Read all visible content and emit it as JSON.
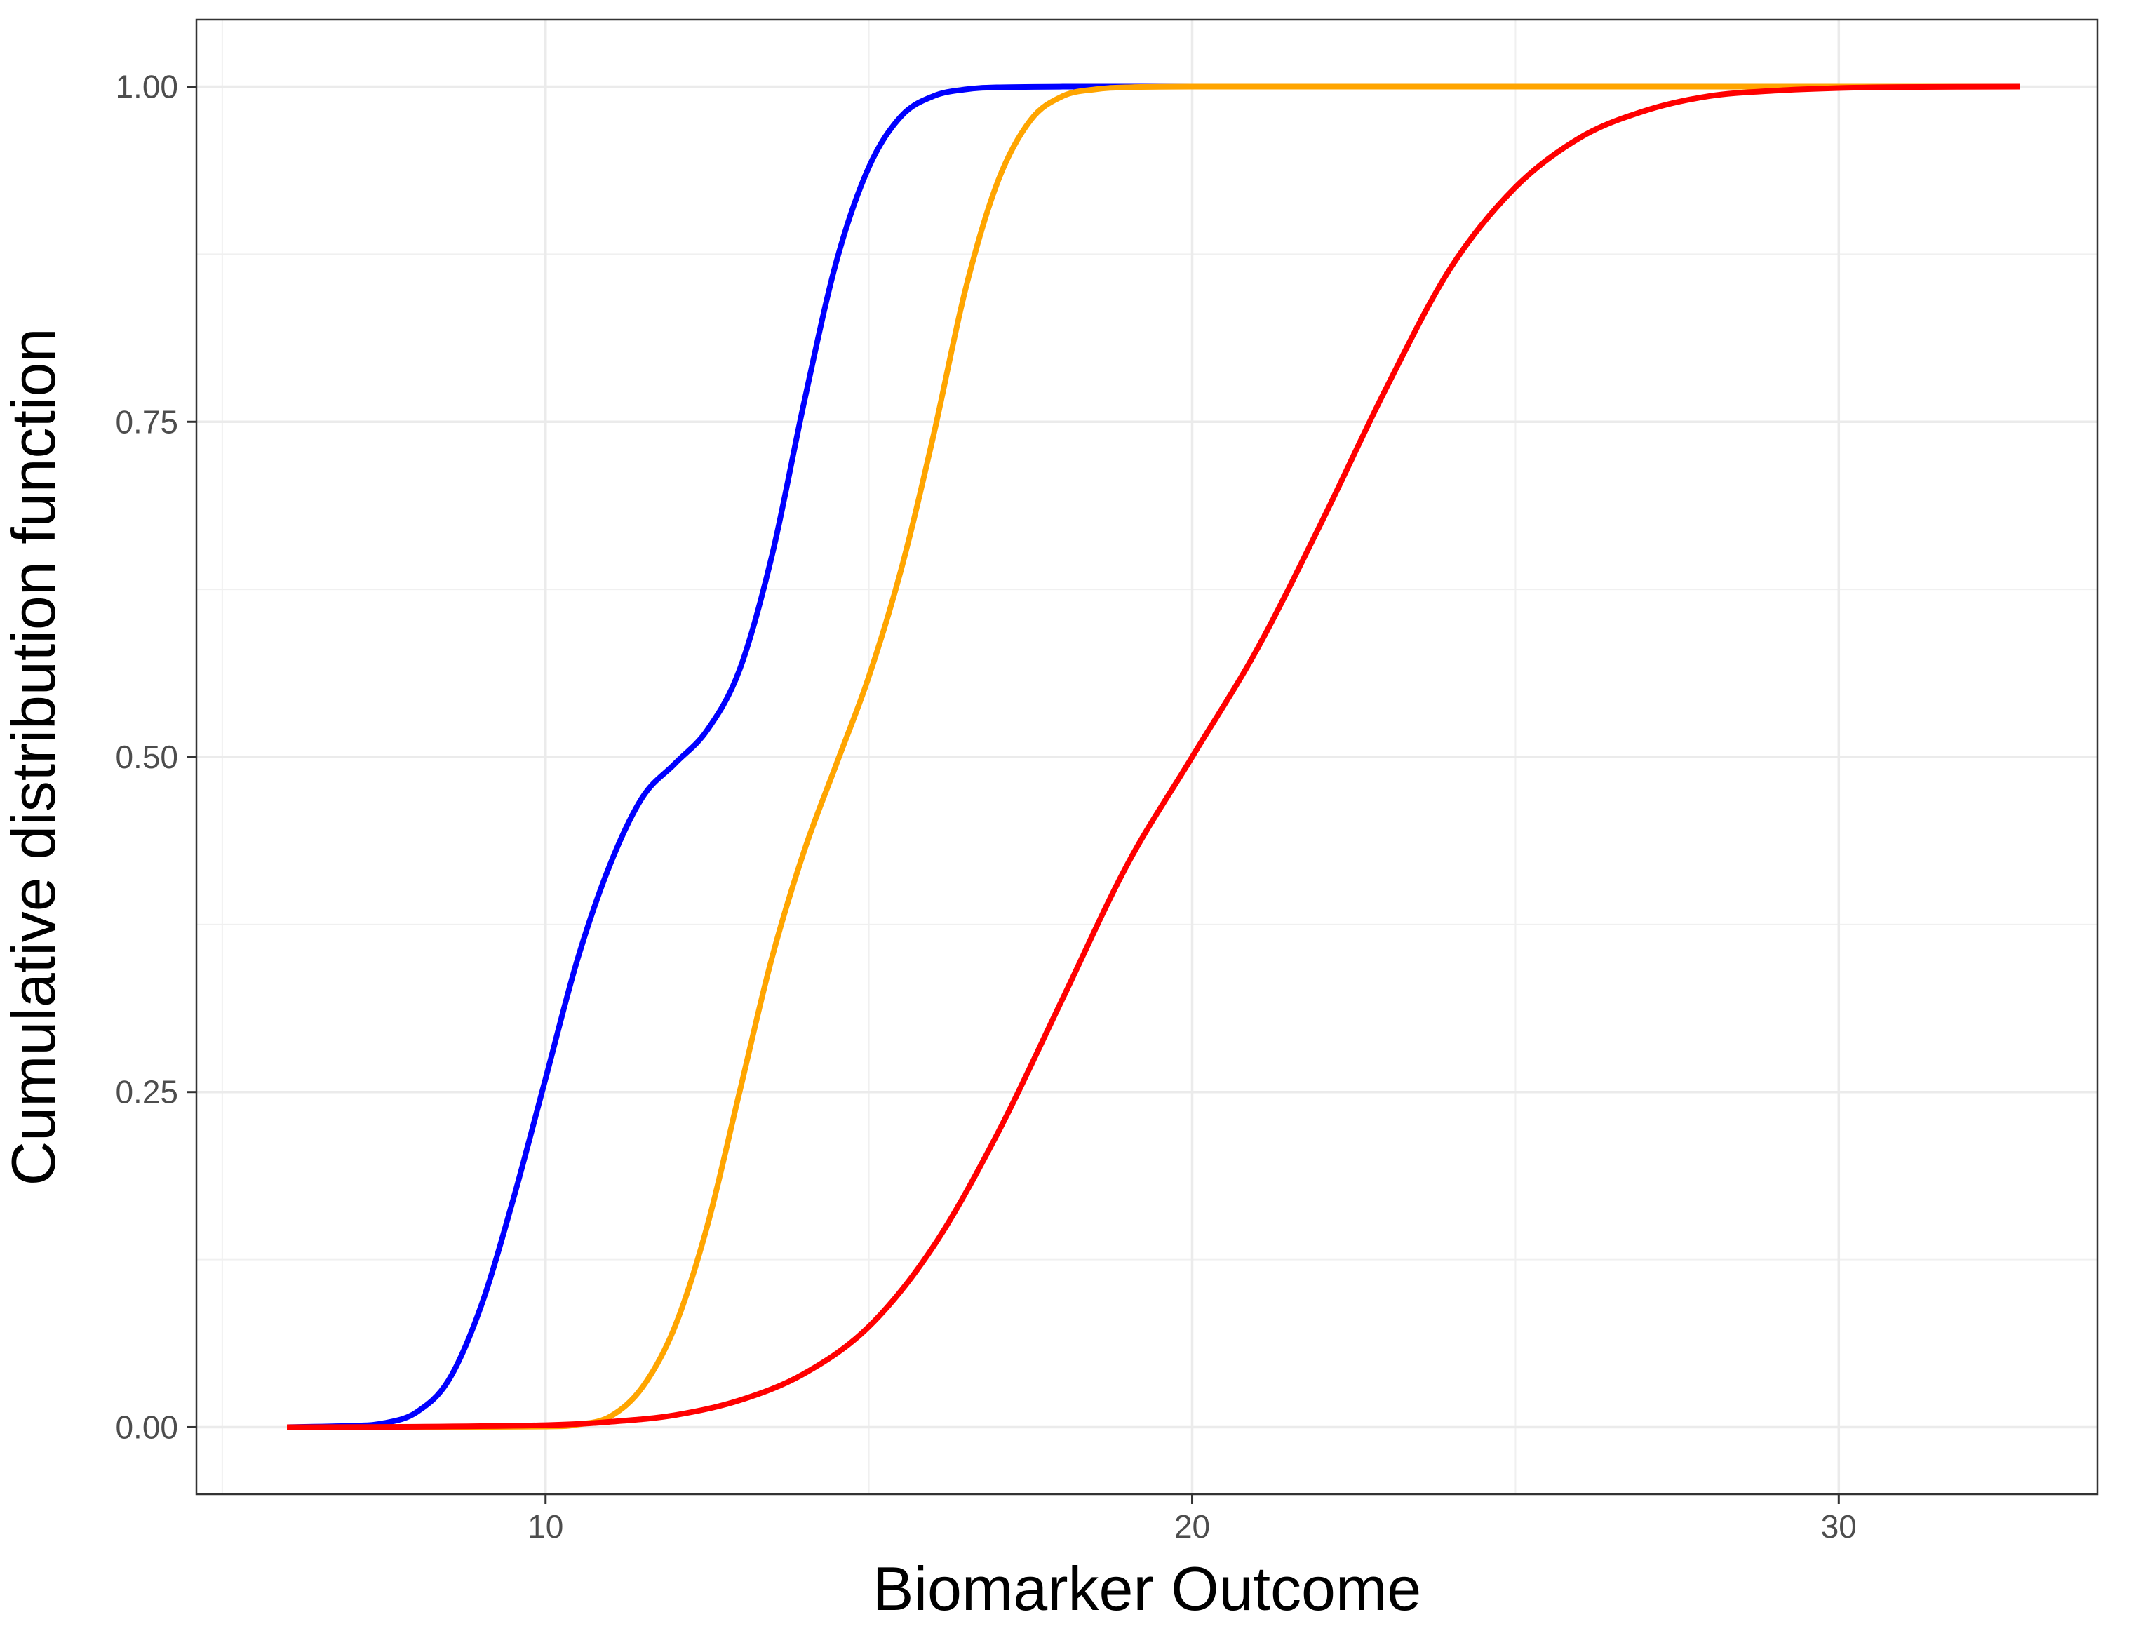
{
  "chart_data": {
    "type": "line",
    "title": "",
    "xlabel": "Biomarker Outcome",
    "ylabel": "Cumulative distribution function",
    "xlim": [
      4.6,
      34.0
    ],
    "ylim": [
      -0.05,
      1.05
    ],
    "x_ticks": [
      10,
      20,
      30
    ],
    "x_tick_labels": [
      "10",
      "20",
      "30"
    ],
    "y_ticks": [
      0,
      0.25,
      0.5,
      0.75,
      1.0
    ],
    "y_tick_labels": [
      "0.00",
      "0.25",
      "0.50",
      "0.75",
      "1.00"
    ],
    "x_minor_ticks": [
      5,
      15,
      25
    ],
    "y_minor_ticks": [
      0.125,
      0.375,
      0.625,
      0.875
    ],
    "grid": true,
    "legend": "none",
    "series": [
      {
        "color": "#0000FF",
        "x": [
          6.0,
          7.0,
          7.5,
          8.0,
          8.5,
          9.0,
          9.5,
          10.0,
          10.5,
          11.0,
          11.5,
          12.0,
          12.5,
          13.0,
          13.5,
          14.0,
          14.5,
          15.0,
          15.5,
          16.0,
          16.5,
          17.0,
          18.0,
          19.0,
          20.0,
          25.0,
          30.0,
          32.8
        ],
        "y": [
          0.0,
          0.001,
          0.003,
          0.011,
          0.035,
          0.09,
          0.17,
          0.26,
          0.35,
          0.42,
          0.47,
          0.495,
          0.52,
          0.565,
          0.65,
          0.765,
          0.87,
          0.94,
          0.978,
          0.993,
          0.998,
          0.9995,
          1.0,
          1.0,
          1.0,
          1.0,
          1.0,
          1.0
        ]
      },
      {
        "color": "#FFA500",
        "x": [
          6.0,
          8.0,
          10.0,
          10.5,
          11.0,
          11.5,
          12.0,
          12.5,
          13.0,
          13.5,
          14.0,
          14.5,
          15.0,
          15.5,
          16.0,
          16.5,
          17.0,
          17.5,
          18.0,
          18.5,
          19.0,
          20.0,
          25.0,
          30.0,
          32.8
        ],
        "y": [
          0.0,
          0.0,
          0.0005,
          0.002,
          0.008,
          0.03,
          0.075,
          0.15,
          0.25,
          0.35,
          0.43,
          0.495,
          0.56,
          0.64,
          0.74,
          0.85,
          0.93,
          0.975,
          0.993,
          0.998,
          0.9995,
          1.0,
          1.0,
          1.0,
          1.0
        ]
      },
      {
        "color": "#FF0000",
        "x": [
          6.0,
          8.0,
          10.0,
          11.0,
          12.0,
          13.0,
          14.0,
          15.0,
          16.0,
          17.0,
          18.0,
          19.0,
          20.0,
          21.0,
          22.0,
          23.0,
          24.0,
          25.0,
          26.0,
          27.0,
          28.0,
          29.0,
          30.0,
          31.0,
          32.8
        ],
        "y": [
          0.0,
          0.0003,
          0.0015,
          0.004,
          0.009,
          0.02,
          0.04,
          0.075,
          0.135,
          0.22,
          0.32,
          0.42,
          0.5,
          0.58,
          0.675,
          0.775,
          0.865,
          0.925,
          0.962,
          0.982,
          0.993,
          0.997,
          0.999,
          0.9997,
          1.0
        ]
      }
    ]
  }
}
